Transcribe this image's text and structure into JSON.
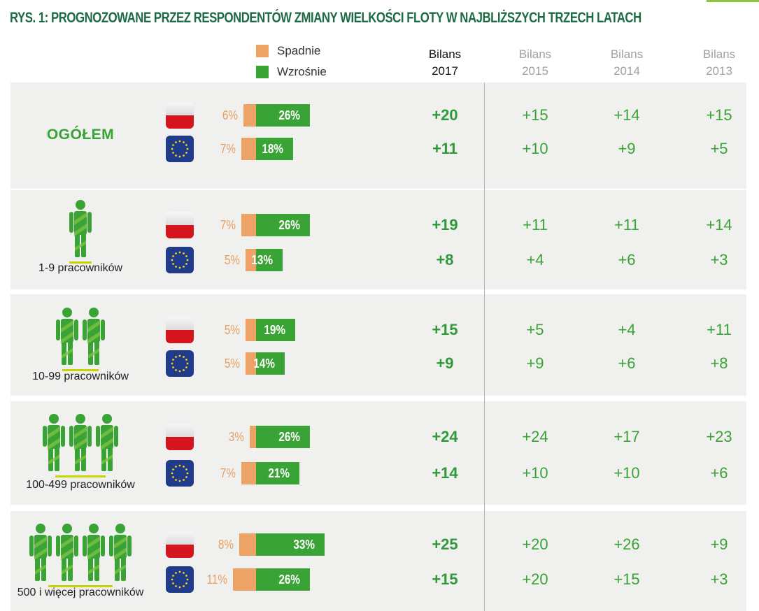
{
  "title": "RYS. 1: PROGNOZOWANE PRZEZ RESPONDENTÓW ZMIANY WIELKOŚCI FLOTY W NAJBLIŻSZYCH TRZECH LATACH",
  "legend": [
    {
      "label": "Spadnie",
      "color": "#eea366"
    },
    {
      "label": "Wzrośnie",
      "color": "#3aa335"
    }
  ],
  "columns": [
    {
      "line1": "Bilans",
      "line2": "2017"
    },
    {
      "line1": "Bilans",
      "line2": "2015"
    },
    {
      "line1": "Bilans",
      "line2": "2014"
    },
    {
      "line1": "Bilans",
      "line2": "2013"
    }
  ],
  "chart_data": {
    "type": "bar",
    "orientation": "horizontal",
    "series_names": [
      "Spadnie",
      "Wzrośnie"
    ],
    "groups": [
      {
        "label": "OGÓŁEM",
        "people": 0,
        "rows": [
          {
            "region_icon": "poland-flag-icon",
            "decrease": 6,
            "increase": 26,
            "decrease_label": "6%",
            "increase_label": "26%",
            "balances": [
              "+20",
              "+15",
              "+14",
              "+15"
            ]
          },
          {
            "region_icon": "eu-flag-icon",
            "decrease": 7,
            "increase": 18,
            "decrease_label": "7%",
            "increase_label": "18%",
            "balances": [
              "+11",
              "+10",
              "+9",
              "+5"
            ]
          }
        ]
      },
      {
        "label": "1-9 pracowników",
        "people": 1,
        "rows": [
          {
            "region_icon": "poland-flag-icon",
            "decrease": 7,
            "increase": 26,
            "decrease_label": "7%",
            "increase_label": "26%",
            "balances": [
              "+19",
              "+11",
              "+11",
              "+14"
            ]
          },
          {
            "region_icon": "eu-flag-icon",
            "decrease": 5,
            "increase": 13,
            "decrease_label": "5%",
            "increase_label": "13%",
            "balances": [
              "+8",
              "+4",
              "+6",
              "+3"
            ]
          }
        ]
      },
      {
        "label": "10-99 pracowników",
        "people": 2,
        "rows": [
          {
            "region_icon": "poland-flag-icon",
            "decrease": 5,
            "increase": 19,
            "decrease_label": "5%",
            "increase_label": "19%",
            "balances": [
              "+15",
              "+5",
              "+4",
              "+11"
            ]
          },
          {
            "region_icon": "eu-flag-icon",
            "decrease": 5,
            "increase": 14,
            "decrease_label": "5%",
            "increase_label": "14%",
            "balances": [
              "+9",
              "+9",
              "+6",
              "+8"
            ]
          }
        ]
      },
      {
        "label": "100-499 pracowników",
        "people": 3,
        "rows": [
          {
            "region_icon": "poland-flag-icon",
            "decrease": 3,
            "increase": 26,
            "decrease_label": "3%",
            "increase_label": "26%",
            "balances": [
              "+24",
              "+24",
              "+17",
              "+23"
            ]
          },
          {
            "region_icon": "eu-flag-icon",
            "decrease": 7,
            "increase": 21,
            "decrease_label": "7%",
            "increase_label": "21%",
            "balances": [
              "+14",
              "+10",
              "+10",
              "+6"
            ]
          }
        ]
      },
      {
        "label": "500 i więcej pracowników",
        "people": 4,
        "rows": [
          {
            "region_icon": "poland-flag-icon",
            "decrease": 8,
            "increase": 33,
            "decrease_label": "8%",
            "increase_label": "33%",
            "balances": [
              "+25",
              "+20",
              "+26",
              "+9"
            ]
          },
          {
            "region_icon": "eu-flag-icon",
            "decrease": 11,
            "increase": 26,
            "decrease_label": "11%",
            "increase_label": "26%",
            "balances": [
              "+15",
              "+20",
              "+15",
              "+3"
            ]
          }
        ]
      }
    ]
  }
}
